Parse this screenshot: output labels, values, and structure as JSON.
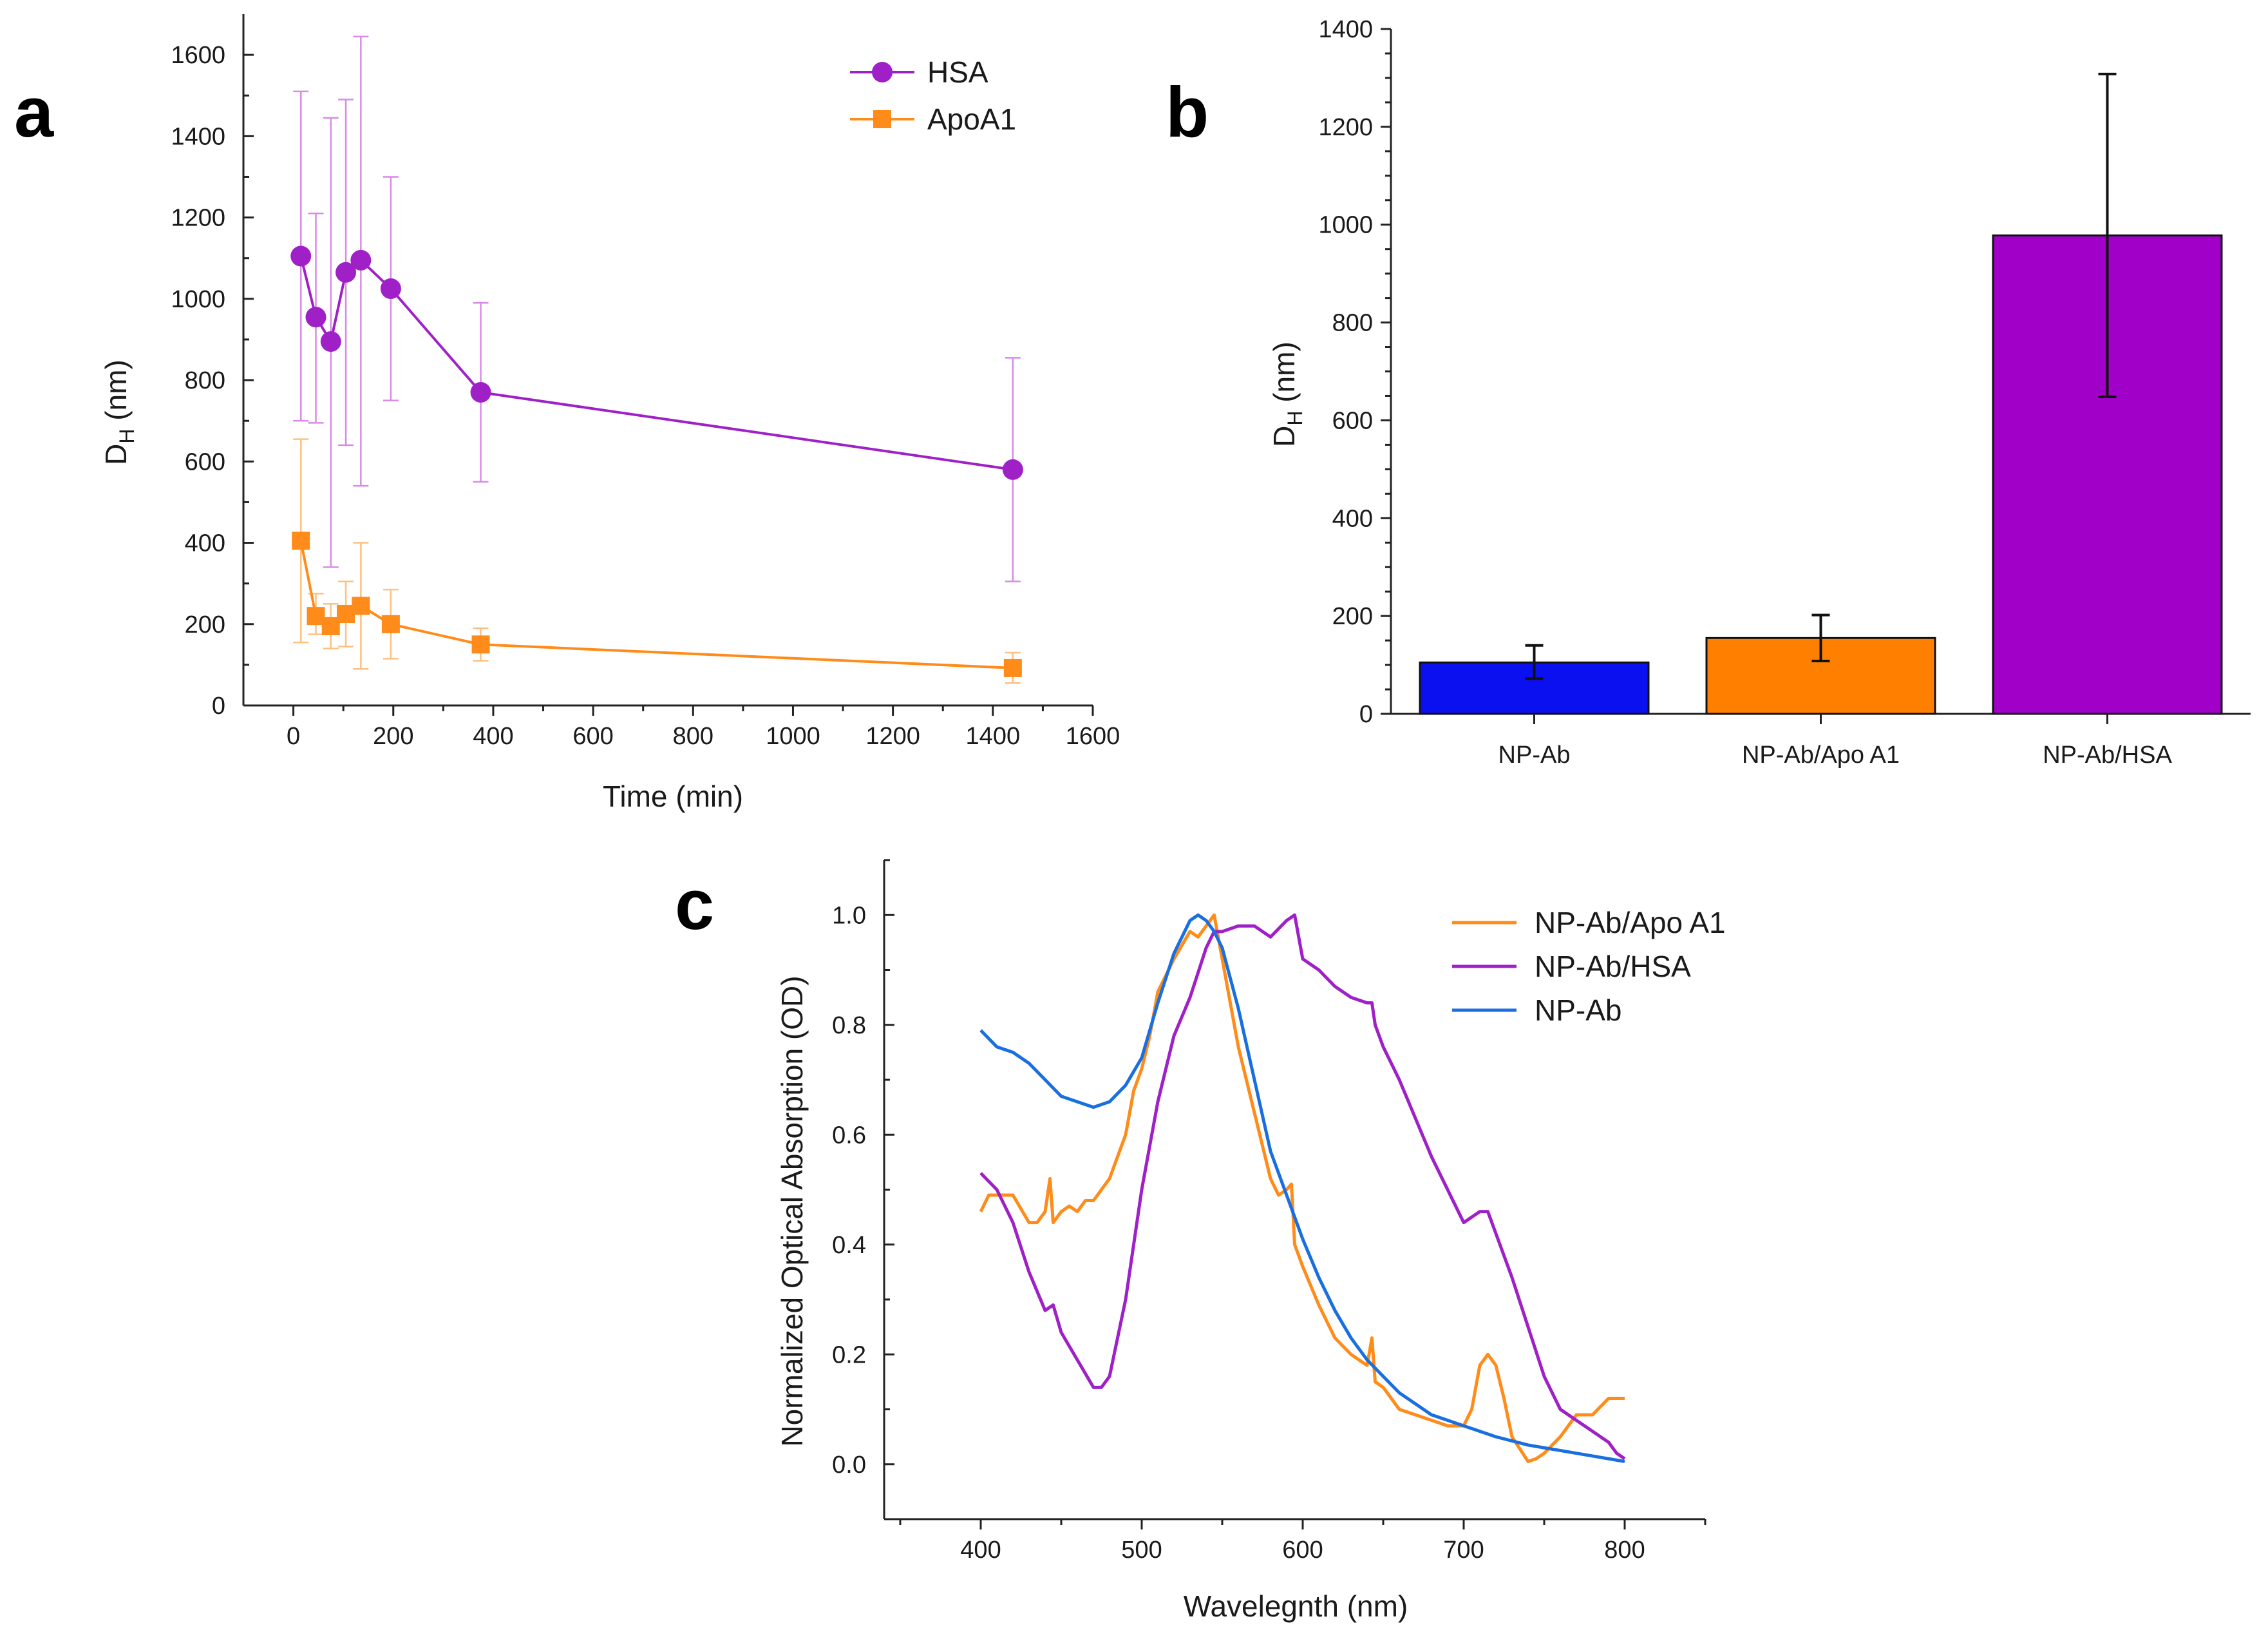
{
  "chart_data": [
    {
      "panel": "a",
      "type": "line",
      "xlabel": "Time (min)",
      "ylabel_main": "D",
      "ylabel_sub": "H",
      "ylabel_unit": " (nm)",
      "xlim": [
        -100,
        1600
      ],
      "ylim": [
        0,
        1700
      ],
      "xticks": [
        0,
        200,
        400,
        600,
        800,
        1000,
        1200,
        1400,
        1600
      ],
      "yticks": [
        0,
        200,
        400,
        600,
        800,
        1000,
        1200,
        1400,
        1600
      ],
      "legend_position": "top-right",
      "series": [
        {
          "name": "HSA",
          "marker": "circle",
          "color": "#a020c8",
          "error_color": "#d98ae8",
          "x": [
            15,
            45,
            75,
            105,
            135,
            195,
            375,
            1440
          ],
          "y": [
            1105,
            955,
            895,
            1065,
            1095,
            1025,
            770,
            580
          ],
          "err_low": [
            700,
            695,
            340,
            640,
            540,
            750,
            550,
            305
          ],
          "err_high": [
            1510,
            1210,
            1445,
            1490,
            1645,
            1300,
            990,
            855
          ]
        },
        {
          "name": "ApoA1",
          "marker": "square",
          "color": "#ff8c1a",
          "error_color": "#ffc080",
          "x": [
            15,
            45,
            75,
            105,
            135,
            195,
            375,
            1440
          ],
          "y": [
            405,
            220,
            195,
            225,
            245,
            200,
            150,
            92
          ],
          "err_low": [
            155,
            175,
            140,
            145,
            90,
            115,
            110,
            55
          ],
          "err_high": [
            655,
            275,
            250,
            305,
            400,
            285,
            190,
            130
          ]
        }
      ]
    },
    {
      "panel": "b",
      "type": "bar",
      "xlabel": "",
      "ylabel_main": "D",
      "ylabel_sub": "H",
      "ylabel_unit": " (nm)",
      "ylim": [
        0,
        1400
      ],
      "yticks": [
        0,
        200,
        400,
        600,
        800,
        1000,
        1200,
        1400
      ],
      "categories": [
        "NP-Ab",
        "NP-Ab/Apo A1",
        "NP-Ab/HSA"
      ],
      "values": [
        105,
        155,
        978
      ],
      "err_low": [
        72,
        108,
        648
      ],
      "err_high": [
        140,
        202,
        1308
      ],
      "colors": [
        "#0a10f0",
        "#ff8000",
        "#a000c8"
      ]
    },
    {
      "panel": "c",
      "type": "line",
      "xlabel": "Wavelegnth (nm)",
      "ylabel": "Normalized Optical Absorption (OD)",
      "xlim": [
        340,
        850
      ],
      "ylim": [
        -0.1,
        1.1
      ],
      "xticks": [
        400,
        500,
        600,
        700,
        800
      ],
      "yticks": [
        0.0,
        0.2,
        0.4,
        0.6,
        0.8,
        1.0
      ],
      "ytick_labels": [
        "0.0",
        "0.2",
        "0.4",
        "0.6",
        "0.8",
        "1.0"
      ],
      "legend_position": "top-right",
      "series": [
        {
          "name": "NP-Ab/Apo A1",
          "color": "#ff8c1a",
          "x": [
            400,
            405,
            410,
            420,
            430,
            435,
            440,
            443,
            445,
            450,
            455,
            460,
            465,
            470,
            480,
            490,
            495,
            500,
            505,
            510,
            520,
            530,
            535,
            540,
            545,
            550,
            560,
            570,
            580,
            585,
            590,
            593,
            595,
            600,
            610,
            620,
            630,
            640,
            643,
            645,
            650,
            660,
            670,
            680,
            690,
            700,
            705,
            710,
            715,
            720,
            725,
            730,
            740,
            745,
            750,
            760,
            770,
            780,
            790,
            800
          ],
          "y": [
            0.46,
            0.49,
            0.49,
            0.49,
            0.44,
            0.44,
            0.46,
            0.52,
            0.44,
            0.46,
            0.47,
            0.46,
            0.48,
            0.48,
            0.52,
            0.6,
            0.68,
            0.72,
            0.78,
            0.86,
            0.92,
            0.97,
            0.96,
            0.98,
            1.0,
            0.92,
            0.76,
            0.64,
            0.52,
            0.49,
            0.5,
            0.51,
            0.4,
            0.36,
            0.29,
            0.23,
            0.2,
            0.18,
            0.23,
            0.15,
            0.14,
            0.1,
            0.09,
            0.08,
            0.07,
            0.07,
            0.1,
            0.18,
            0.2,
            0.18,
            0.12,
            0.05,
            0.005,
            0.01,
            0.02,
            0.05,
            0.09,
            0.09,
            0.12,
            0.12
          ]
        },
        {
          "name": "NP-Ab/HSA",
          "color": "#a020c8",
          "x": [
            400,
            410,
            420,
            430,
            440,
            445,
            450,
            460,
            470,
            475,
            480,
            490,
            500,
            510,
            520,
            530,
            540,
            545,
            550,
            560,
            570,
            580,
            590,
            595,
            600,
            610,
            620,
            630,
            640,
            643,
            645,
            650,
            660,
            670,
            680,
            690,
            700,
            705,
            710,
            715,
            720,
            730,
            740,
            750,
            760,
            770,
            780,
            790,
            795,
            800
          ],
          "y": [
            0.53,
            0.5,
            0.44,
            0.35,
            0.28,
            0.29,
            0.24,
            0.19,
            0.14,
            0.14,
            0.16,
            0.3,
            0.5,
            0.66,
            0.78,
            0.85,
            0.94,
            0.97,
            0.97,
            0.98,
            0.98,
            0.96,
            0.99,
            1.0,
            0.92,
            0.9,
            0.87,
            0.85,
            0.84,
            0.84,
            0.8,
            0.76,
            0.7,
            0.63,
            0.56,
            0.5,
            0.44,
            0.45,
            0.46,
            0.46,
            0.42,
            0.34,
            0.25,
            0.16,
            0.1,
            0.08,
            0.06,
            0.04,
            0.02,
            0.01
          ]
        },
        {
          "name": "NP-Ab",
          "color": "#1a6fe0",
          "x": [
            400,
            410,
            420,
            430,
            440,
            450,
            460,
            470,
            480,
            490,
            500,
            510,
            520,
            530,
            535,
            540,
            545,
            550,
            560,
            570,
            580,
            590,
            600,
            610,
            620,
            630,
            640,
            650,
            660,
            670,
            680,
            690,
            700,
            720,
            740,
            760,
            780,
            800
          ],
          "y": [
            0.79,
            0.76,
            0.75,
            0.73,
            0.7,
            0.67,
            0.66,
            0.65,
            0.66,
            0.69,
            0.74,
            0.84,
            0.93,
            0.99,
            1.0,
            0.99,
            0.97,
            0.94,
            0.83,
            0.7,
            0.57,
            0.49,
            0.41,
            0.34,
            0.28,
            0.23,
            0.19,
            0.16,
            0.13,
            0.11,
            0.09,
            0.08,
            0.07,
            0.05,
            0.035,
            0.025,
            0.015,
            0.005
          ]
        }
      ]
    }
  ]
}
